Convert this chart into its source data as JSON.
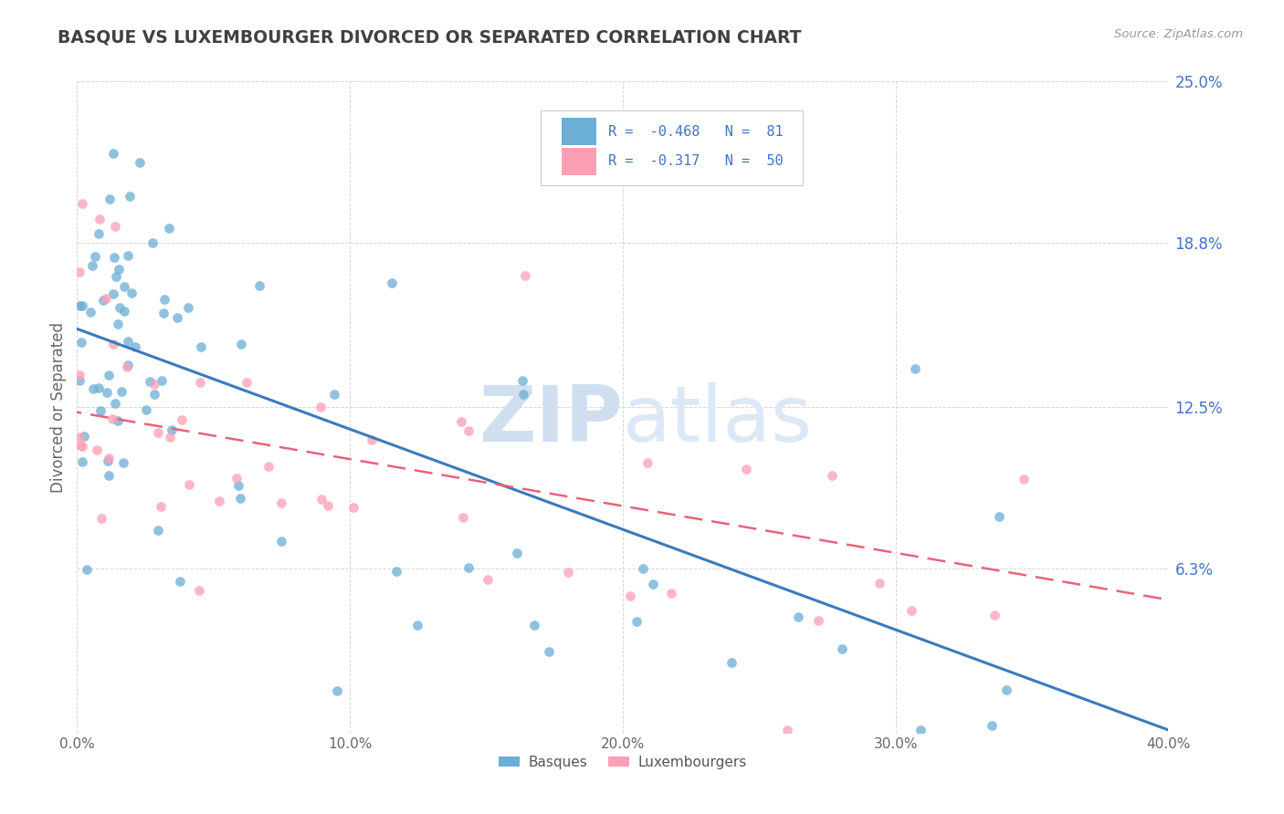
{
  "title": "BASQUE VS LUXEMBOURGER DIVORCED OR SEPARATED CORRELATION CHART",
  "source": "Source: ZipAtlas.com",
  "ylabel": "Divorced or Separated",
  "basque_R": -0.468,
  "basque_N": 81,
  "luxembourger_R": -0.317,
  "luxembourger_N": 50,
  "xlim": [
    0.0,
    0.4
  ],
  "ylim": [
    0.0,
    0.25
  ],
  "ytick_vals": [
    0.0,
    0.063,
    0.125,
    0.188,
    0.25
  ],
  "ytick_labels": [
    "",
    "6.3%",
    "12.5%",
    "18.8%",
    "25.0%"
  ],
  "xtick_vals": [
    0.0,
    0.1,
    0.2,
    0.3,
    0.4
  ],
  "xtick_labels": [
    "0.0%",
    "10.0%",
    "20.0%",
    "30.0%",
    "40.0%"
  ],
  "basque_color": "#6baed6",
  "luxembourger_color": "#fc9fb5",
  "trend_blue": "#3a7abf",
  "trend_pink": "#e8637a",
  "watermark_color": "#d0dff0",
  "legend_color": "#4472c4",
  "background_color": "#ffffff",
  "grid_color": "#cccccc",
  "title_color": "#404040",
  "axis_label_color": "#666666",
  "blue_trend_intercept": 0.155,
  "blue_trend_slope": -0.385,
  "pink_trend_intercept": 0.123,
  "pink_trend_slope": -0.18
}
